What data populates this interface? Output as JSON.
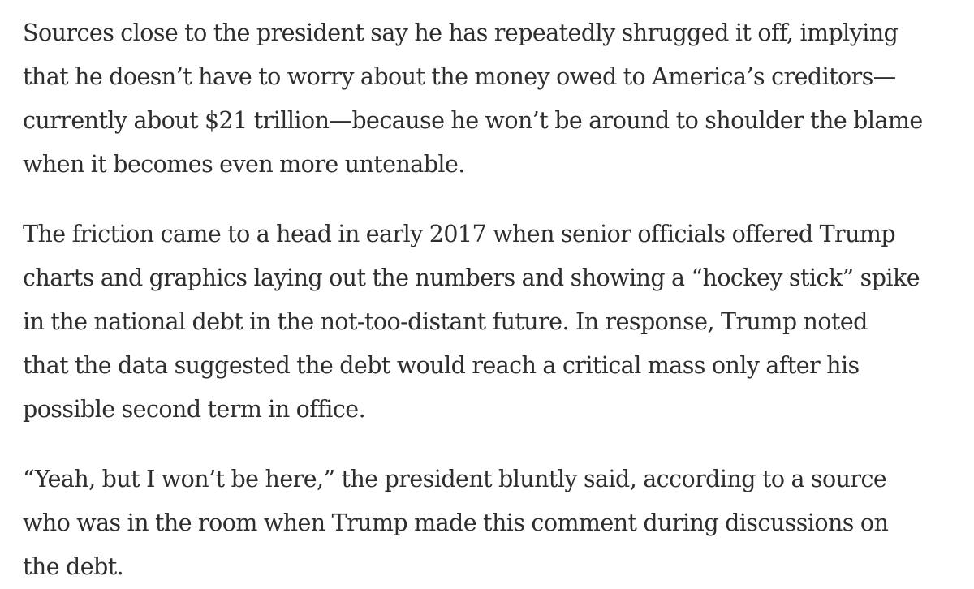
{
  "article": {
    "paragraphs": [
      {
        "lines": [
          "Sources close to the president say he has repeatedly shrugged it off, implying",
          "that he doesn’t have to worry about the money owed to America’s creditors—",
          "currently about $21 trillion—because he won’t be around to shoulder the blame",
          "when it becomes even more untenable."
        ]
      },
      {
        "lines": [
          "The friction came to a head in early 2017 when senior officials offered Trump",
          "charts and graphics laying out the numbers and showing a “hockey stick” spike",
          "in the national debt in the not-too-distant future. In response, Trump noted",
          "that the data suggested the debt would reach a critical mass only after his",
          "possible second term in office."
        ]
      },
      {
        "lines": [
          "“Yeah, but I won’t be here,” the president bluntly said, according to a source",
          "who was in the room when Trump made this comment during discussions on",
          "the debt."
        ]
      }
    ]
  }
}
